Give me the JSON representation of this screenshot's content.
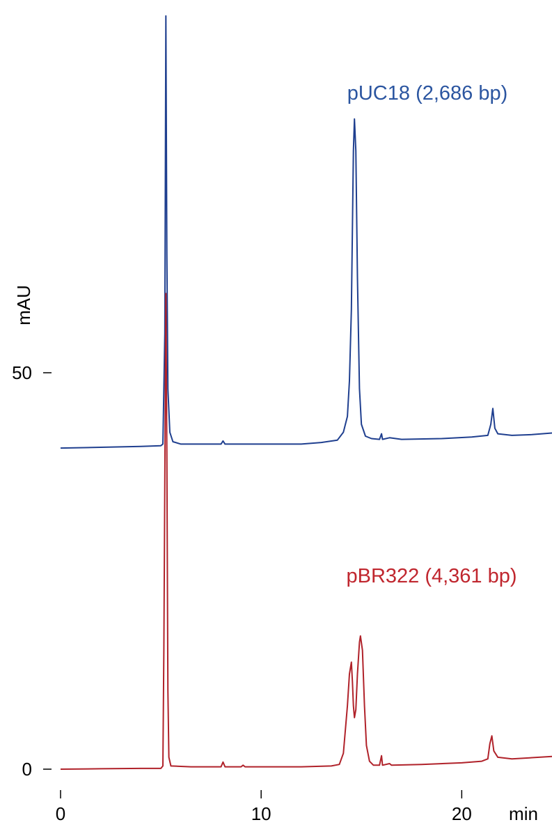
{
  "chart_data": {
    "type": "line",
    "xlabel": "min",
    "ylabel": "mAU",
    "xlim": [
      0,
      24.5
    ],
    "ylim": [
      -1.5,
      95
    ],
    "x_ticks": [
      0,
      10,
      20
    ],
    "x_tick_labels": [
      "0",
      "10",
      "20"
    ],
    "y_ticks": [
      0,
      50
    ],
    "y_tick_labels": [
      "0",
      "50"
    ],
    "grid": false,
    "series": [
      {
        "name": "pUC18 (2,686 bp)",
        "color": "#1f3f8f",
        "label_color": "#2b55a0",
        "points": [
          [
            0,
            40.5
          ],
          [
            2,
            40.6
          ],
          [
            4,
            40.7
          ],
          [
            5.0,
            40.8
          ],
          [
            5.1,
            41.0
          ],
          [
            5.2,
            55.0
          ],
          [
            5.25,
            95.0
          ],
          [
            5.3,
            65.0
          ],
          [
            5.35,
            48.0
          ],
          [
            5.45,
            42.5
          ],
          [
            5.6,
            41.3
          ],
          [
            6,
            41.0
          ],
          [
            7,
            41.0
          ],
          [
            8.0,
            41.0
          ],
          [
            8.1,
            41.4
          ],
          [
            8.2,
            41.0
          ],
          [
            10,
            41.0
          ],
          [
            12,
            41.0
          ],
          [
            13,
            41.2
          ],
          [
            13.8,
            41.5
          ],
          [
            14.1,
            42.5
          ],
          [
            14.3,
            44.5
          ],
          [
            14.4,
            49.0
          ],
          [
            14.5,
            58.0
          ],
          [
            14.6,
            78.0
          ],
          [
            14.65,
            82.0
          ],
          [
            14.72,
            78.0
          ],
          [
            14.8,
            62.0
          ],
          [
            14.9,
            48.0
          ],
          [
            15.0,
            43.5
          ],
          [
            15.2,
            42.0
          ],
          [
            15.5,
            41.7
          ],
          [
            15.9,
            41.6
          ],
          [
            16.0,
            42.3
          ],
          [
            16.05,
            41.6
          ],
          [
            16.4,
            41.8
          ],
          [
            17,
            41.6
          ],
          [
            19,
            41.7
          ],
          [
            20.5,
            41.9
          ],
          [
            21.3,
            42.1
          ],
          [
            21.45,
            43.5
          ],
          [
            21.55,
            45.5
          ],
          [
            21.65,
            43.0
          ],
          [
            21.8,
            42.3
          ],
          [
            22.5,
            42.1
          ],
          [
            23.5,
            42.2
          ],
          [
            24.5,
            42.4
          ]
        ]
      },
      {
        "name": "pBR322 (4,361 bp)",
        "color": "#b0222a",
        "label_color": "#c0262e",
        "points": [
          [
            0,
            0.0
          ],
          [
            2,
            0.05
          ],
          [
            4,
            0.1
          ],
          [
            5.0,
            0.1
          ],
          [
            5.1,
            0.4
          ],
          [
            5.15,
            15.0
          ],
          [
            5.25,
            60.0
          ],
          [
            5.3,
            40.0
          ],
          [
            5.35,
            10.0
          ],
          [
            5.4,
            1.5
          ],
          [
            5.5,
            0.4
          ],
          [
            6.5,
            0.3
          ],
          [
            8.0,
            0.3
          ],
          [
            8.1,
            0.9
          ],
          [
            8.2,
            0.3
          ],
          [
            9.0,
            0.3
          ],
          [
            9.1,
            0.5
          ],
          [
            9.2,
            0.3
          ],
          [
            12,
            0.3
          ],
          [
            13.5,
            0.4
          ],
          [
            13.9,
            0.6
          ],
          [
            14.1,
            2.0
          ],
          [
            14.3,
            8.0
          ],
          [
            14.4,
            12.0
          ],
          [
            14.5,
            13.5
          ],
          [
            14.55,
            11.0
          ],
          [
            14.6,
            8.0
          ],
          [
            14.65,
            6.5
          ],
          [
            14.72,
            7.5
          ],
          [
            14.8,
            12.0
          ],
          [
            14.9,
            16.0
          ],
          [
            14.95,
            16.8
          ],
          [
            15.05,
            15.0
          ],
          [
            15.15,
            8.0
          ],
          [
            15.25,
            3.0
          ],
          [
            15.4,
            1.0
          ],
          [
            15.6,
            0.5
          ],
          [
            15.9,
            0.5
          ],
          [
            16.0,
            1.7
          ],
          [
            16.05,
            0.5
          ],
          [
            16.4,
            0.7
          ],
          [
            16.5,
            0.5
          ],
          [
            18,
            0.6
          ],
          [
            20,
            0.8
          ],
          [
            21.0,
            1.0
          ],
          [
            21.3,
            1.3
          ],
          [
            21.4,
            3.2
          ],
          [
            21.5,
            4.2
          ],
          [
            21.6,
            2.3
          ],
          [
            21.8,
            1.5
          ],
          [
            22.5,
            1.3
          ],
          [
            24.5,
            1.6
          ]
        ]
      }
    ]
  }
}
